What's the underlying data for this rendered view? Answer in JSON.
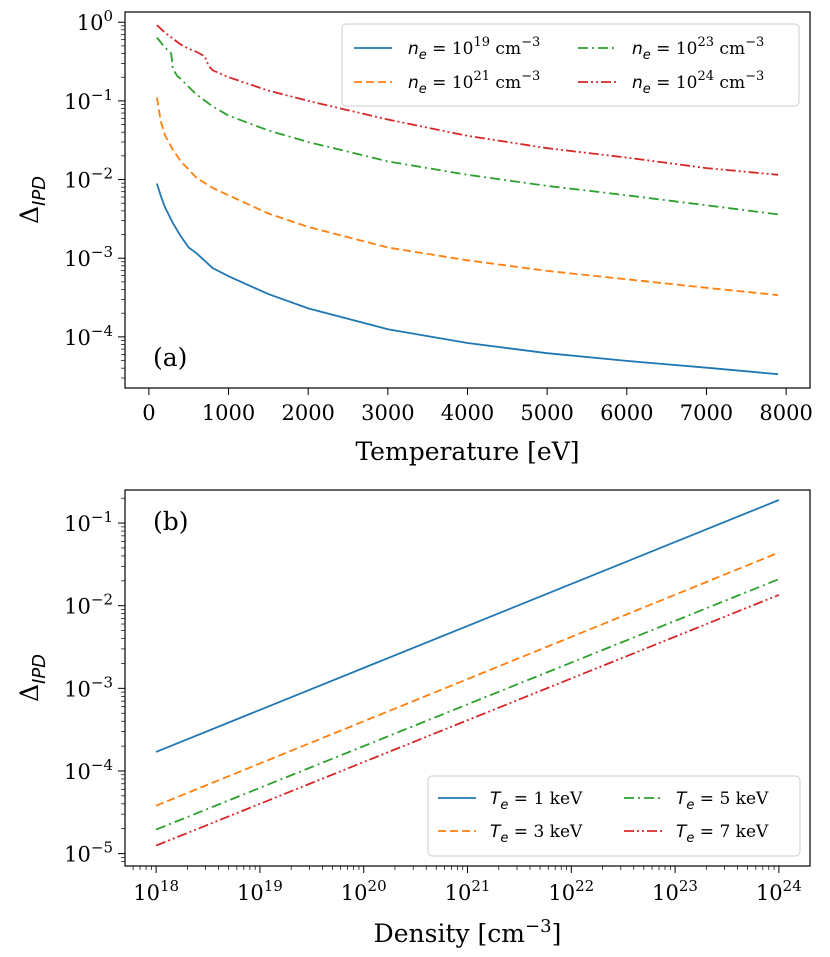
{
  "chart_data": [
    {
      "id": "a",
      "type": "line",
      "panel_label": "(a)",
      "xlabel": "Temperature [eV]",
      "ylabel_base": "Δ",
      "ylabel_sub": "IPD",
      "x_scale": "linear",
      "y_scale": "log",
      "xlim": [
        -300,
        8300
      ],
      "ylim_exp": [
        -4.65,
        0.13
      ],
      "x_ticks": [
        0,
        1000,
        2000,
        3000,
        4000,
        5000,
        6000,
        7000,
        8000
      ],
      "x_tick_labels": [
        "0",
        "1000",
        "2000",
        "3000",
        "4000",
        "5000",
        "6000",
        "7000",
        "8000"
      ],
      "y_tick_exps": [
        0,
        -1,
        -2,
        -3,
        -4
      ],
      "y_tick_labels": [
        {
          "base": "10",
          "exp": "0"
        },
        {
          "base": "10",
          "exp": "−1"
        },
        {
          "base": "10",
          "exp": "−2"
        },
        {
          "base": "10",
          "exp": "−3"
        },
        {
          "base": "10",
          "exp": "−4"
        }
      ],
      "legend_placement": "top-right",
      "legend_columns": 2,
      "grid": false,
      "series": [
        {
          "name": "n_e = 10^19 cm^-3",
          "legend": {
            "sym": "n",
            "sub": "e",
            "eq": " = 10",
            "sup": "19",
            "unit": " cm",
            "unit_sup": "−3"
          },
          "color": "#1f77b4",
          "dash": "",
          "x": [
            100,
            150,
            200,
            300,
            400,
            500,
            600,
            800,
            1000,
            1500,
            2000,
            3000,
            4000,
            5000,
            6000,
            7000,
            7900
          ],
          "y": [
            0.0089,
            0.0062,
            0.0045,
            0.0028,
            0.0019,
            0.00137,
            0.00115,
            0.00075,
            0.00059,
            0.00035,
            0.00023,
            0.000125,
            8.35e-05,
            6.2e-05,
            4.95e-05,
            4.05e-05,
            3.35e-05
          ]
        },
        {
          "name": "n_e = 10^21 cm^-3",
          "legend": {
            "sym": "n",
            "sub": "e",
            "eq": " = 10",
            "sup": "21",
            "unit": " cm",
            "unit_sup": "−3"
          },
          "color": "#ff7f0e",
          "dash": "8,4",
          "x": [
            100,
            150,
            200,
            300,
            400,
            600,
            800,
            1000,
            1500,
            2000,
            3000,
            4000,
            5000,
            6000,
            7000,
            7900
          ],
          "y": [
            0.11,
            0.055,
            0.037,
            0.024,
            0.017,
            0.0105,
            0.0078,
            0.0063,
            0.0037,
            0.0025,
            0.00137,
            0.00094,
            0.00069,
            0.00054,
            0.00042,
            0.00034
          ]
        },
        {
          "name": "n_e = 10^23 cm^-3",
          "legend": {
            "sym": "n",
            "sub": "e",
            "eq": " = 10",
            "sup": "23",
            "unit": " cm",
            "unit_sup": "−3"
          },
          "color": "#2ca02c",
          "dash": "10,4,2,4",
          "x": [
            100,
            200,
            280,
            300,
            350,
            400,
            600,
            800,
            1000,
            1500,
            2000,
            3000,
            4000,
            5000,
            6000,
            7000,
            7900
          ],
          "y": [
            0.64,
            0.48,
            0.4,
            0.26,
            0.21,
            0.19,
            0.12,
            0.085,
            0.065,
            0.042,
            0.03,
            0.017,
            0.0115,
            0.0083,
            0.0063,
            0.0047,
            0.0036
          ]
        },
        {
          "name": "n_e = 10^24 cm^-3",
          "legend": {
            "sym": "n",
            "sub": "e",
            "eq": " = 10",
            "sup": "24",
            "unit": " cm",
            "unit_sup": "−3"
          },
          "color": "#d62728",
          "dash": "10,3,2,3,2,3",
          "x": [
            100,
            200,
            300,
            400,
            500,
            600,
            700,
            750,
            800,
            1000,
            1500,
            2000,
            3000,
            4000,
            5000,
            6000,
            7000,
            7900
          ],
          "y": [
            0.92,
            0.74,
            0.62,
            0.52,
            0.46,
            0.42,
            0.37,
            0.28,
            0.245,
            0.2,
            0.135,
            0.1,
            0.058,
            0.036,
            0.025,
            0.019,
            0.014,
            0.0115
          ]
        }
      ]
    },
    {
      "id": "b",
      "type": "line",
      "panel_label": "(b)",
      "xlabel_base": "Density [cm",
      "xlabel_sup": "−3",
      "xlabel_end": "]",
      "ylabel_base": "Δ",
      "ylabel_sub": "IPD",
      "x_scale": "log",
      "y_scale": "log",
      "xlim_exp": [
        17.7,
        24.3
      ],
      "ylim_exp": [
        -5.15,
        -0.6
      ],
      "x_tick_exps": [
        18,
        19,
        20,
        21,
        22,
        23,
        24
      ],
      "x_tick_labels": [
        {
          "base": "10",
          "exp": "18"
        },
        {
          "base": "10",
          "exp": "19"
        },
        {
          "base": "10",
          "exp": "20"
        },
        {
          "base": "10",
          "exp": "21"
        },
        {
          "base": "10",
          "exp": "22"
        },
        {
          "base": "10",
          "exp": "23"
        },
        {
          "base": "10",
          "exp": "24"
        }
      ],
      "y_tick_exps": [
        -1,
        -2,
        -3,
        -4,
        -5
      ],
      "y_tick_labels": [
        {
          "base": "10",
          "exp": "−1"
        },
        {
          "base": "10",
          "exp": "−2"
        },
        {
          "base": "10",
          "exp": "−3"
        },
        {
          "base": "10",
          "exp": "−4"
        },
        {
          "base": "10",
          "exp": "−5"
        }
      ],
      "legend_placement": "bottom-right",
      "legend_columns": 2,
      "grid": false,
      "series": [
        {
          "name": "T_e = 1 keV",
          "legend": {
            "sym": "T",
            "sub": "e",
            "eq": " = ",
            "value": " 1 keV"
          },
          "color": "#1f77b4",
          "dash": "",
          "x": [
            1e+18,
            1e+24
          ],
          "y": [
            0.00017,
            0.19
          ]
        },
        {
          "name": "T_e = 3 keV",
          "legend": {
            "sym": "T",
            "sub": "e",
            "eq": " = ",
            "value": " 3 keV"
          },
          "color": "#ff7f0e",
          "dash": "8,4",
          "x": [
            1e+18,
            1e+24
          ],
          "y": [
            3.8e-05,
            0.044
          ]
        },
        {
          "name": "T_e = 5 keV",
          "legend": {
            "sym": "T",
            "sub": "e",
            "eq": " = ",
            "value": " 5 keV"
          },
          "color": "#2ca02c",
          "dash": "10,4,2,4",
          "x": [
            1e+18,
            1e+24
          ],
          "y": [
            1.95e-05,
            0.021
          ]
        },
        {
          "name": "T_e = 7 keV",
          "legend": {
            "sym": "T",
            "sub": "e",
            "eq": " = ",
            "value": " 7 keV"
          },
          "color": "#d62728",
          "dash": "10,3,2,3,2,3",
          "x": [
            1e+18,
            1e+24
          ],
          "y": [
            1.25e-05,
            0.0135
          ]
        }
      ]
    }
  ]
}
